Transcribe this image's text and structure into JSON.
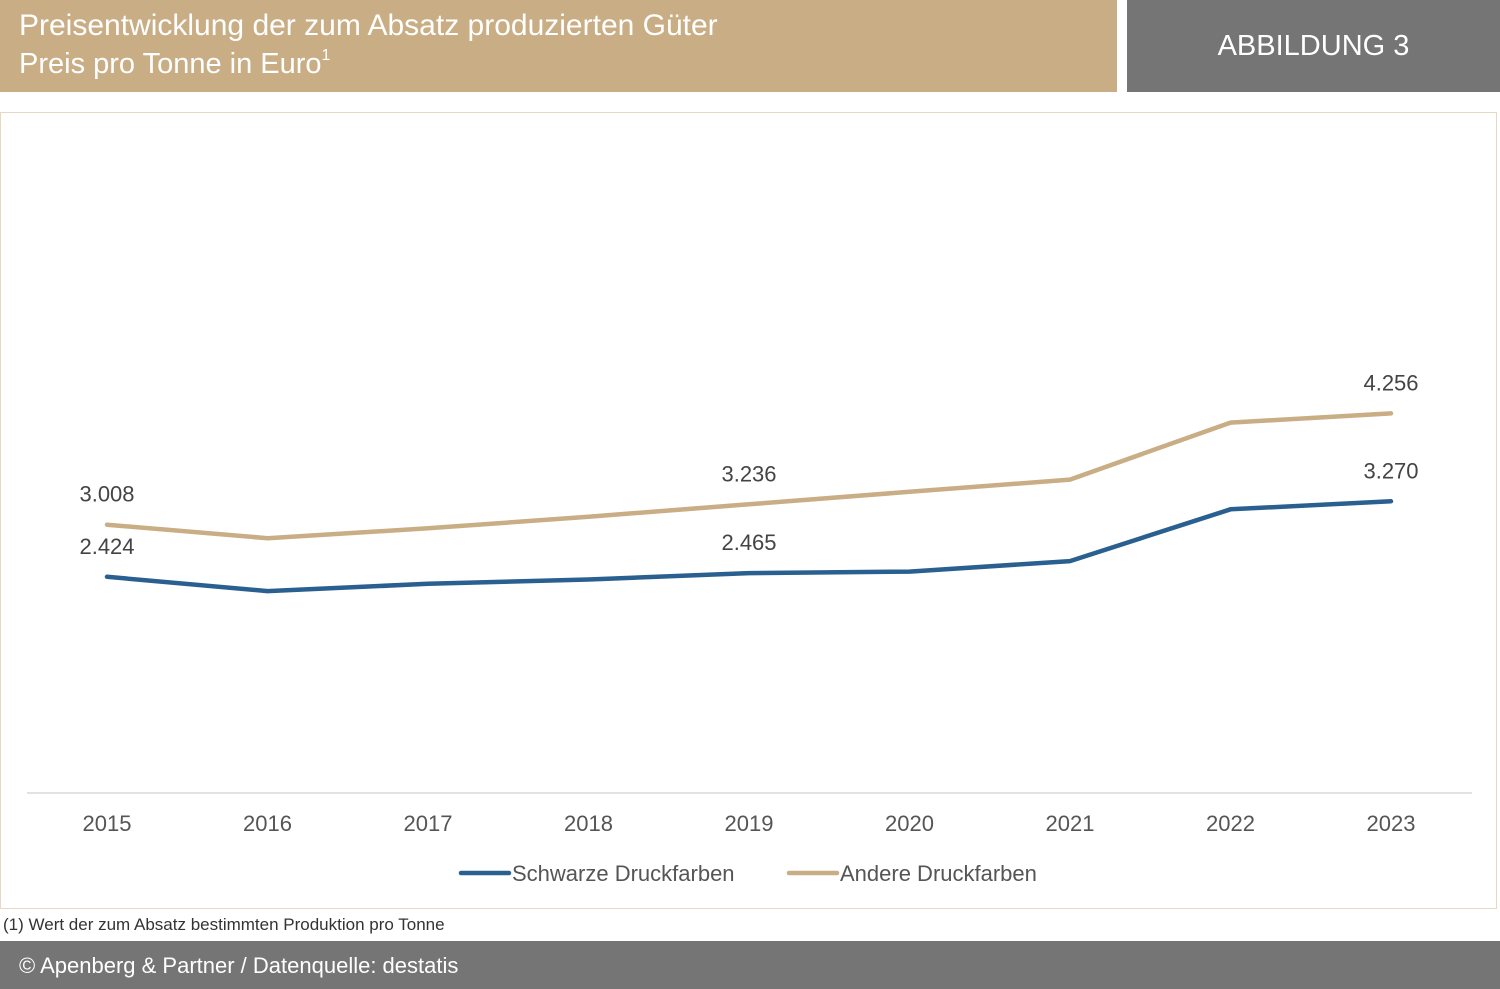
{
  "header": {
    "title": "Preisentwicklung der zum Absatz produzierten Güter",
    "subtitle": "Preis pro Tonne in Euro",
    "subtitle_sup": "1",
    "badge": "ABBILDUNG 3"
  },
  "footnote": "(1) Wert der zum Absatz bestimmten Produktion pro Tonne",
  "footer": "© Apenberg & Partner / Datenquelle: destatis",
  "colors": {
    "header_bg": "#c9ad84",
    "badge_bg": "#757575",
    "series_black": "#2a6090",
    "series_other": "#c9ad84"
  },
  "chart_data": {
    "type": "line",
    "x": [
      "2015",
      "2016",
      "2017",
      "2018",
      "2019",
      "2020",
      "2021",
      "2022",
      "2023"
    ],
    "series": [
      {
        "name": "Schwarze Druckfarben",
        "color": "#2a6090",
        "values": [
          2424,
          2264,
          2345,
          2393,
          2465,
          2482,
          2600,
          3180,
          3270
        ],
        "labels": [
          {
            "index": 0,
            "text": "2.424"
          },
          {
            "index": 4,
            "text": "2.465"
          },
          {
            "index": 8,
            "text": "3.270"
          }
        ]
      },
      {
        "name": "Andere Druckfarben",
        "color": "#c9ad84",
        "values": [
          3008,
          2856,
          2968,
          3098,
          3236,
          3377,
          3513,
          4153,
          4256
        ],
        "labels": [
          {
            "index": 0,
            "text": "3.008"
          },
          {
            "index": 4,
            "text": "3.236"
          },
          {
            "index": 8,
            "text": "4.256"
          }
        ]
      }
    ],
    "ylim": [
      0,
      4680
    ],
    "grid": false,
    "legend_position": "bottom-center"
  }
}
